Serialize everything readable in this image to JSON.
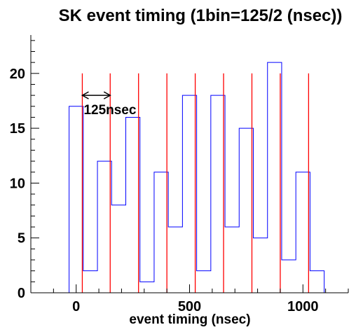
{
  "chart_data": {
    "type": "histogram",
    "title": "SK event timing (1bin=125/2 (nsec))",
    "xlabel": "event timing (nsec)",
    "ylabel": "",
    "xlim": [
      -200,
      1200
    ],
    "ylim": [
      0,
      23.5
    ],
    "x_ticks": [
      0,
      500,
      1000
    ],
    "y_ticks": [
      0,
      5,
      10,
      15,
      20
    ],
    "grid": false,
    "bin_width": 62.5,
    "bin_start": -31.25,
    "values": [
      17,
      2,
      12,
      8,
      16,
      1,
      11,
      6,
      18,
      2,
      18,
      6,
      15,
      5,
      21,
      3,
      11,
      2
    ],
    "series_color": "#0000ff",
    "reference_lines": {
      "color": "#ff0000",
      "x": [
        27,
        150,
        275,
        400,
        525,
        650,
        775,
        900,
        1025
      ],
      "y_top": 20
    },
    "annotation": {
      "text": "125nsec",
      "arrow_from": 27,
      "arrow_to": 150,
      "arrow_y": 18
    }
  }
}
